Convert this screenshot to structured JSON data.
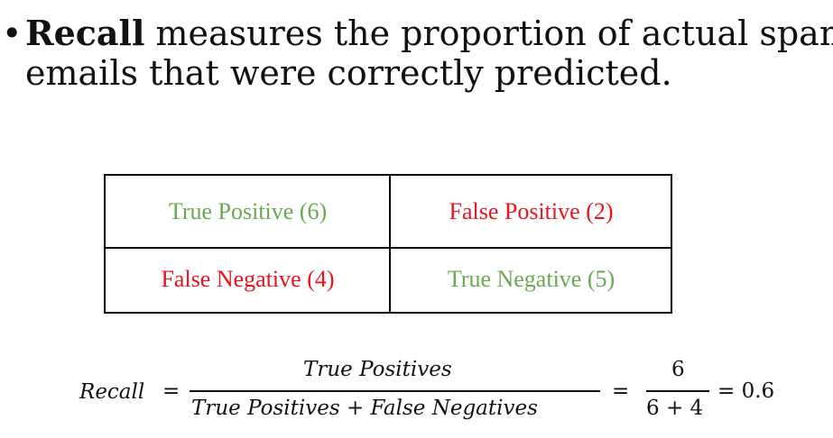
{
  "slide": {
    "bullet_symbol": "•",
    "bullet_bold": "Recall",
    "bullet_rest_line1": " measures the proportion of actual spam",
    "bullet_line2": "emails that were correctly predicted."
  },
  "confusion_matrix": {
    "cells": [
      {
        "label": "True Positive (6)",
        "color": "#6aa84f"
      },
      {
        "label": "False Positive (2)",
        "color": "#e8131c"
      },
      {
        "label": "False Negative (4)",
        "color": "#e8131c"
      },
      {
        "label": "True Negative (5)",
        "color": "#6aa84f"
      }
    ]
  },
  "formula": {
    "lhs": "Recall",
    "eq": "=",
    "numerator": "True Positives",
    "denominator": "True Positives + False Negatives",
    "num2": "6",
    "den2": "6 + 4",
    "result": "= 0.6"
  }
}
